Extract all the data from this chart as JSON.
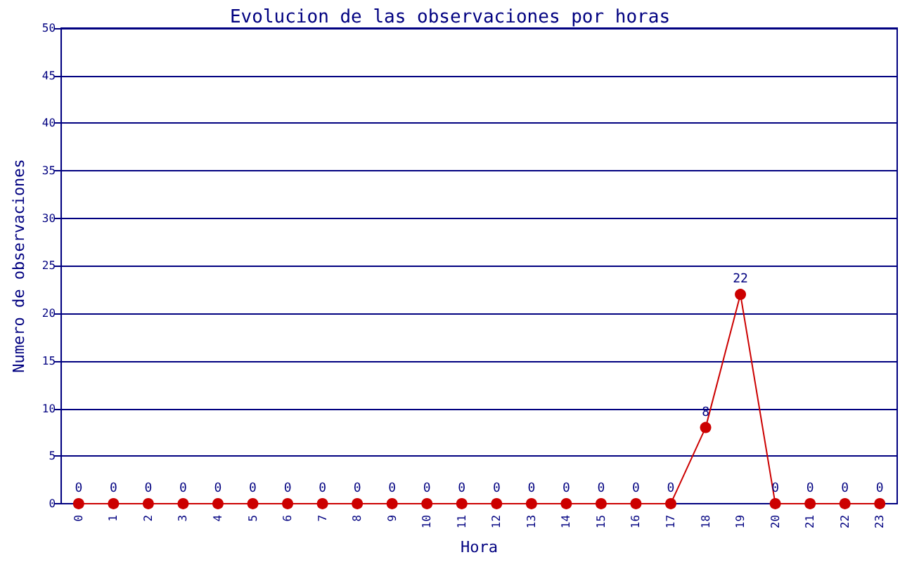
{
  "chart_data": {
    "type": "line",
    "title": "Evolucion de las observaciones por horas",
    "xlabel": "Hora",
    "ylabel": "Numero de observaciones",
    "categories": [
      "0",
      "1",
      "2",
      "3",
      "4",
      "5",
      "6",
      "7",
      "8",
      "9",
      "10",
      "11",
      "12",
      "13",
      "14",
      "15",
      "16",
      "17",
      "18",
      "19",
      "20",
      "21",
      "22",
      "23"
    ],
    "series": [
      {
        "color": "#cc0000",
        "values": [
          0,
          0,
          0,
          0,
          0,
          0,
          0,
          0,
          0,
          0,
          0,
          0,
          0,
          0,
          0,
          0,
          0,
          0,
          8,
          22,
          0,
          0,
          0,
          0
        ]
      }
    ],
    "ylim": [
      0,
      50
    ],
    "yticks": [
      0,
      5,
      10,
      15,
      20,
      25,
      30,
      35,
      40,
      45,
      50
    ],
    "grid": "y",
    "marker": "circle",
    "line_style": "solid",
    "data_labels": true
  }
}
